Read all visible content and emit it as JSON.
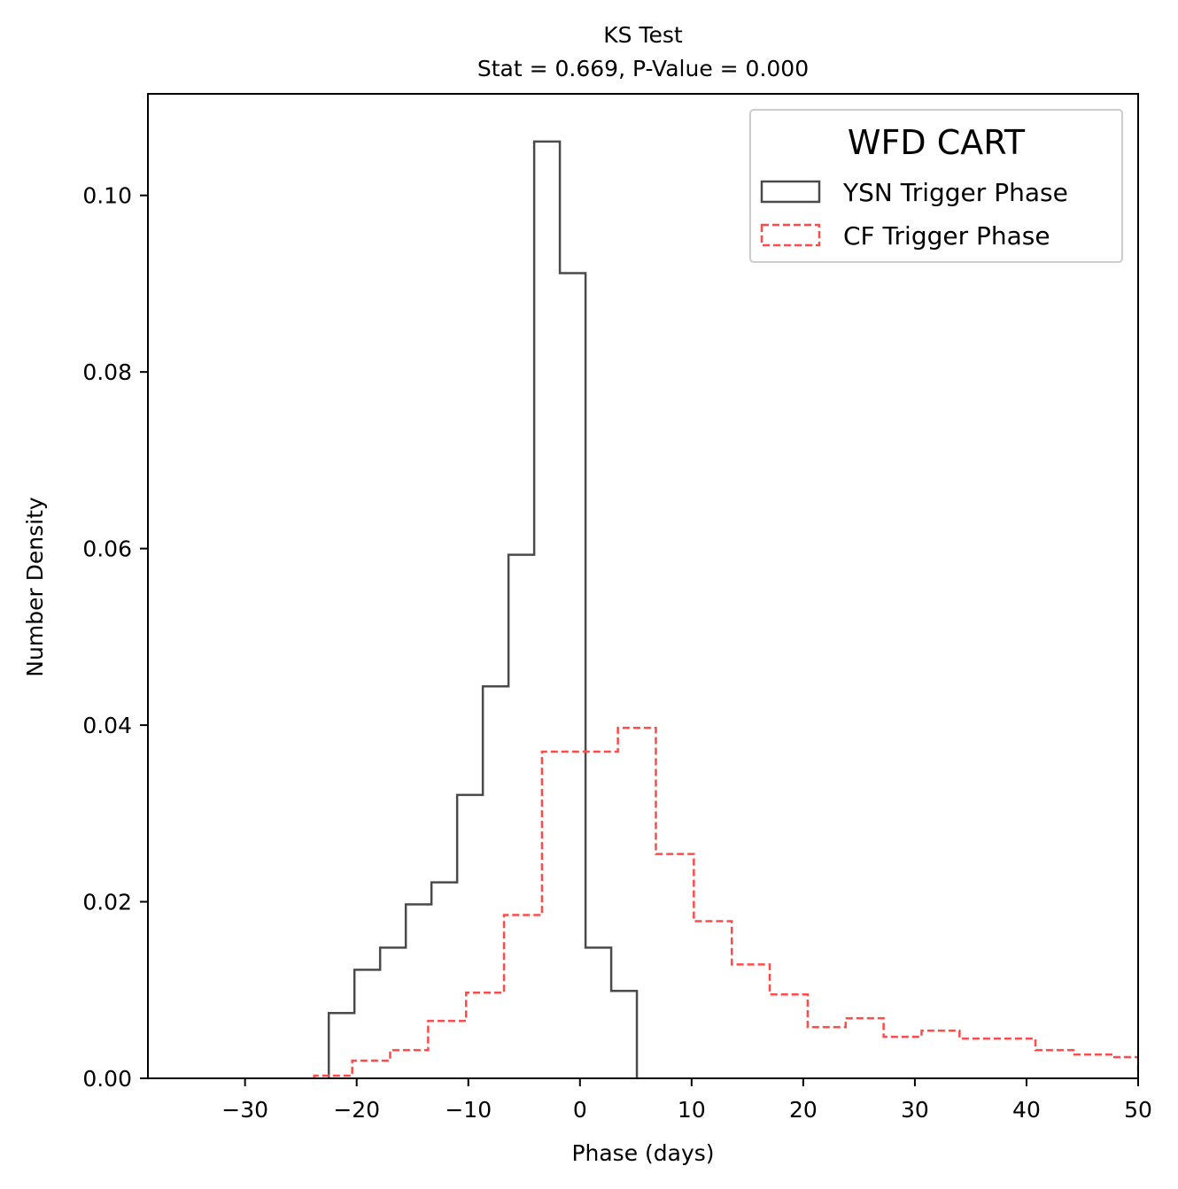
{
  "chart_data": {
    "type": "histogram",
    "title": "KS Test",
    "subtitle": "Stat = 0.669, P-Value = 0.000",
    "xlabel": "Phase (days)",
    "ylabel": "Number Density",
    "xlim": [
      -38.7,
      50
    ],
    "ylim": [
      0,
      0.1115
    ],
    "xticks": [
      -30,
      -20,
      -10,
      0,
      10,
      20,
      30,
      40,
      50
    ],
    "xtick_labels": [
      "−30",
      "−20",
      "−10",
      "0",
      "10",
      "20",
      "30",
      "40",
      "50"
    ],
    "yticks": [
      0.0,
      0.02,
      0.04,
      0.06,
      0.08,
      0.1
    ],
    "ytick_labels": [
      "0.00",
      "0.02",
      "0.04",
      "0.06",
      "0.08",
      "0.10"
    ],
    "legend": {
      "title": "WFD CART",
      "placement": "upper right",
      "entries": [
        "YSN Trigger Phase",
        "CF Trigger Phase"
      ]
    },
    "series": [
      {
        "name": "YSN Trigger Phase",
        "style": "solid",
        "color": "#4a4a4a",
        "bin_edges": [
          -22.5,
          -20.2,
          -17.9,
          -15.6,
          -13.3,
          -11.0,
          -8.7,
          -6.4,
          -4.1,
          -1.8,
          0.5,
          2.8,
          5.1
        ],
        "values": [
          0.0074,
          0.0123,
          0.0148,
          0.0197,
          0.0222,
          0.0321,
          0.0444,
          0.0593,
          0.1061,
          0.0912,
          0.0148,
          0.0099
        ]
      },
      {
        "name": "CF Trigger Phase",
        "style": "dashed",
        "color": "#ff4a4a",
        "bin_edges": [
          -23.8,
          -20.4,
          -17.0,
          -13.6,
          -10.2,
          -6.8,
          -3.4,
          0.0,
          3.4,
          6.8,
          10.2,
          13.6,
          17.0,
          20.4,
          23.8,
          27.2,
          30.6,
          34.0,
          37.4,
          40.8,
          44.2,
          47.6,
          50.0
        ],
        "values": [
          0.0003,
          0.002,
          0.0032,
          0.0065,
          0.0097,
          0.0185,
          0.037,
          0.037,
          0.0397,
          0.0254,
          0.0178,
          0.0129,
          0.0095,
          0.0058,
          0.0068,
          0.0047,
          0.0054,
          0.0045,
          0.0045,
          0.0032,
          0.0027,
          0.0024
        ]
      }
    ]
  }
}
